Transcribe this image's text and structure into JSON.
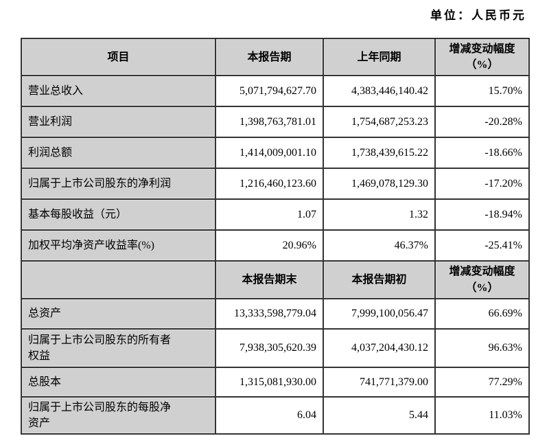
{
  "page": {
    "unit_label": "单位：人民币元"
  },
  "colors": {
    "header_fill": "#d0d0d0",
    "border": "#333333",
    "text": "#000000",
    "background": "#ffffff"
  },
  "table": {
    "header1": {
      "item": "项目",
      "current": "本报告期",
      "prior": "上年同期",
      "change": "增减变动幅度\n（%）"
    },
    "rows1": [
      {
        "label": "营业总收入",
        "current": "5,071,794,627.70",
        "prior": "4,383,446,140.42",
        "change": "15.70%"
      },
      {
        "label": "营业利润",
        "current": "1,398,763,781.01",
        "prior": "1,754,687,253.23",
        "change": "-20.28%"
      },
      {
        "label": "利润总额",
        "current": "1,414,009,001.10",
        "prior": "1,738,439,615.22",
        "change": "-18.66%"
      },
      {
        "label": "归属于上市公司股东的净利润",
        "current": "1,216,460,123.60",
        "prior": "1,469,078,129.30",
        "change": "-17.20%"
      },
      {
        "label": "基本每股收益（元）",
        "current": "1.07",
        "prior": "1.32",
        "change": "-18.94%"
      },
      {
        "label": "加权平均净资产收益率(%)",
        "current": "20.96%",
        "prior": "46.37%",
        "change": "-25.41%"
      }
    ],
    "header2": {
      "item": "",
      "current": "本报告期末",
      "prior": "本报告期初",
      "change": "增减变动幅度\n（%）"
    },
    "rows2": [
      {
        "label": "总资产",
        "current": "13,333,598,779.04",
        "prior": "7,999,100,056.47",
        "change": "66.69%"
      },
      {
        "label": "归属于上市公司股东的所有者\n权益",
        "current": "7,938,305,620.39",
        "prior": "4,037,204,430.12",
        "change": "96.63%"
      },
      {
        "label": "总股本",
        "current": "1,315,081,930.00",
        "prior": "741,771,379.00",
        "change": "77.29%"
      },
      {
        "label": "归属于上市公司股东的每股净\n资产",
        "current": "6.04",
        "prior": "5.44",
        "change": "11.03%"
      }
    ]
  }
}
